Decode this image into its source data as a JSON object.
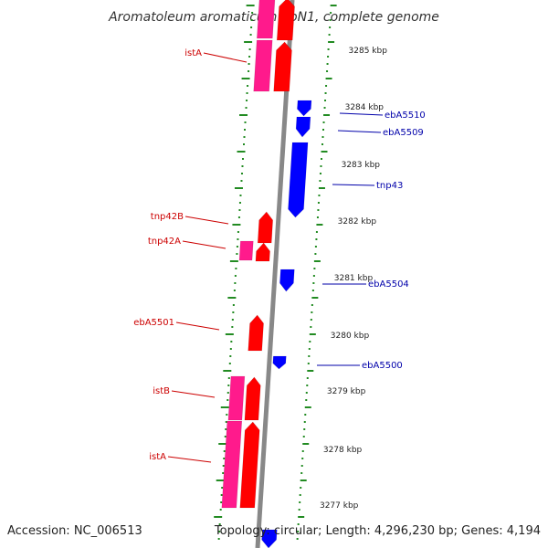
{
  "title": "Aromatoleum aromaticum EbN1, complete genome",
  "footer": {
    "accession": "Accession: NC_006513",
    "summary": "Topology: circular; Length: 4,296,230 bp; Genes: 4,194"
  },
  "colors": {
    "forward_gene": "#ff0000",
    "forward_gene_alt": "#ff1a8c",
    "reverse_gene": "#0000ff",
    "backbone": "#888888",
    "tick": "#228b22",
    "forward_label": "#cc0000",
    "reverse_label": "#0000aa"
  },
  "chart_data": {
    "type": "genome-map",
    "axis_unit": "kbp",
    "axis_ticks": [
      "3285 kbp",
      "3284 kbp",
      "3283 kbp",
      "3282 kbp",
      "3281 kbp",
      "3280 kbp",
      "3279 kbp",
      "3278 kbp",
      "3277 kbp"
    ],
    "labeled_genes": [
      {
        "name": "istA",
        "strand": "forward"
      },
      {
        "name": "ebA5510",
        "strand": "reverse"
      },
      {
        "name": "ebA5509",
        "strand": "reverse"
      },
      {
        "name": "tnp43",
        "strand": "reverse"
      },
      {
        "name": "tnp42B",
        "strand": "forward"
      },
      {
        "name": "tnp42A",
        "strand": "forward"
      },
      {
        "name": "ebA5504",
        "strand": "reverse"
      },
      {
        "name": "ebA5501",
        "strand": "forward"
      },
      {
        "name": "ebA5500",
        "strand": "reverse"
      },
      {
        "name": "istB",
        "strand": "forward"
      },
      {
        "name": "istA",
        "strand": "forward"
      }
    ]
  }
}
